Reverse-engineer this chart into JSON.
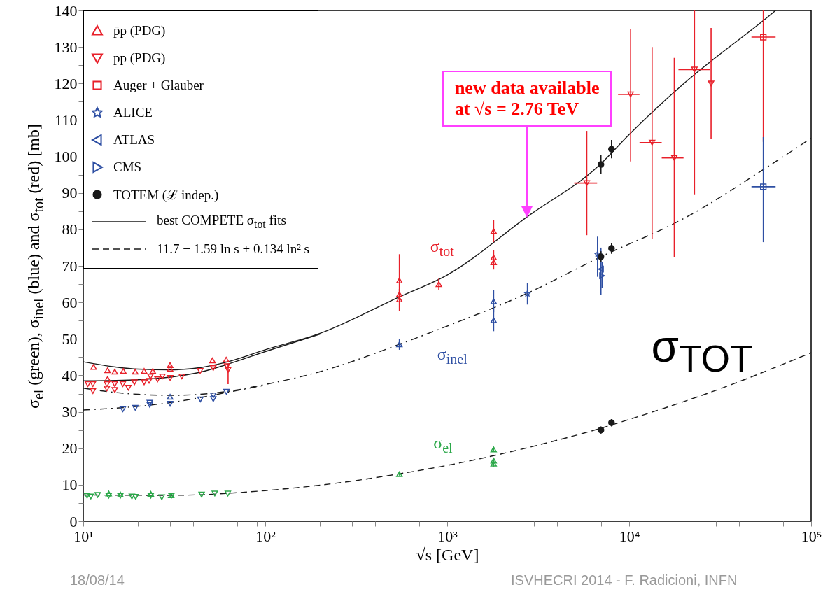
{
  "chart_data": {
    "type": "scatter",
    "xlabel": "√s   [GeV]",
    "ylabel": "σ$_{el}$ (green), σ$_{inel}$ (blue) and σ$_{tot}$ (red)   [mb]",
    "log": "x",
    "legend": "top left",
    "xlim": [
      10,
      100000
    ],
    "ylim": [
      0,
      140
    ],
    "xticks": [
      {
        "value": 10,
        "label": "10¹"
      },
      {
        "value": 20,
        "label": null
      },
      {
        "value": 30,
        "label": null
      },
      {
        "value": 40,
        "label": null
      },
      {
        "value": 50,
        "label": null
      },
      {
        "value": 60,
        "label": null
      },
      {
        "value": 70,
        "label": null
      },
      {
        "value": 80,
        "label": null
      },
      {
        "value": 90,
        "label": null
      },
      {
        "value": 100,
        "label": "10²"
      },
      {
        "value": 200,
        "label": null
      },
      {
        "value": 300,
        "label": null
      },
      {
        "value": 400,
        "label": null
      },
      {
        "value": 500,
        "label": null
      },
      {
        "value": 600,
        "label": null
      },
      {
        "value": 700,
        "label": null
      },
      {
        "value": 800,
        "label": null
      },
      {
        "value": 900,
        "label": null
      },
      {
        "value": 1000,
        "label": "10³"
      },
      {
        "value": 2000,
        "label": null
      },
      {
        "value": 3000,
        "label": null
      },
      {
        "value": 4000,
        "label": null
      },
      {
        "value": 5000,
        "label": null
      },
      {
        "value": 6000,
        "label": null
      },
      {
        "value": 7000,
        "label": null
      },
      {
        "value": 8000,
        "label": null
      },
      {
        "value": 9000,
        "label": null
      },
      {
        "value": 10000,
        "label": "10⁴"
      },
      {
        "value": 20000,
        "label": null
      },
      {
        "value": 30000,
        "label": null
      },
      {
        "value": 40000,
        "label": null
      },
      {
        "value": 50000,
        "label": null
      },
      {
        "value": 60000,
        "label": null
      },
      {
        "value": 70000,
        "label": null
      },
      {
        "value": 80000,
        "label": null
      },
      {
        "value": 90000,
        "label": null
      },
      {
        "value": 100000,
        "label": "10⁵"
      }
    ],
    "yticks": [
      0,
      {
        "value": 5,
        "label": null
      },
      10,
      {
        "value": 15,
        "label": null
      },
      20,
      {
        "value": 25,
        "label": null
      },
      30,
      {
        "value": 35,
        "label": null
      },
      40,
      {
        "value": 45,
        "label": null
      },
      50,
      {
        "value": 55,
        "label": null
      },
      60,
      {
        "value": 65,
        "label": null
      },
      70,
      {
        "value": 75,
        "label": null
      },
      80,
      {
        "value": 85,
        "label": null
      },
      90,
      {
        "value": 95,
        "label": null
      },
      100,
      {
        "value": 105,
        "label": null
      },
      110,
      {
        "value": 115,
        "label": null
      },
      120,
      {
        "value": 125,
        "label": null
      },
      130,
      {
        "value": 135,
        "label": null
      },
      140
    ],
    "series": [
      {
        "name": "p̄p (PDG)",
        "marker": "triangle",
        "color": "#e8202a",
        "x": [
          11.4,
          13.6,
          13.6,
          14.9,
          16.6,
          19.3,
          21.6,
          24.1,
          30,
          30,
          51.3,
          61,
          546,
          546,
          546,
          900,
          1800,
          1800,
          1800
        ],
        "values": [
          42.3,
          41.4,
          39,
          41,
          41.2,
          41,
          41.2,
          41.2,
          41.8,
          42.8,
          44.1,
          44.3,
          66,
          62.2,
          60.8,
          65,
          79.5,
          72.3,
          71
        ],
        "errors": [
          null,
          null,
          null,
          null,
          null,
          null,
          null,
          null,
          null,
          null,
          null,
          null,
          [
            61,
            73.2
          ],
          1.5,
          [
            57.6,
            62.5
          ],
          1.5,
          3,
          2,
          2
        ]
      },
      {
        "name": "pp (PDG)",
        "marker": "triangle-down",
        "color": "#e8202a",
        "x": [
          10.6,
          11.3,
          11.3,
          13.5,
          13.5,
          14.9,
          14.9,
          16.5,
          17.7,
          19.1,
          21.6,
          23,
          23.4,
          25.6,
          27.2,
          30,
          34.8,
          43.9,
          51.8,
          61.6,
          62.5,
          5850,
          10190,
          13370,
          17700,
          22850,
          28200
        ],
        "values": [
          37.6,
          37.6,
          35.7,
          37.6,
          36.4,
          36,
          37.6,
          37.6,
          36.6,
          38.1,
          38.1,
          38.5,
          39.7,
          38.9,
          39.7,
          39.3,
          39.7,
          41.2,
          42,
          42.5,
          41.5,
          92.7,
          117,
          103.8,
          99.6,
          123.8,
          120
        ],
        "errors": [
          null,
          null,
          null,
          null,
          null,
          null,
          null,
          null,
          null,
          null,
          null,
          null,
          null,
          null,
          null,
          null,
          null,
          null,
          null,
          null,
          [
            37.6,
            43
          ],
          [
            78.4,
            107
          ],
          [
            98.6,
            135
          ],
          [
            77.5,
            130
          ],
          [
            72.5,
            127
          ],
          [
            89.6,
            140
          ],
          [
            104.7,
            135.2
          ]
        ],
        "xerrors": [
          null,
          null,
          null,
          null,
          null,
          null,
          null,
          null,
          null,
          null,
          null,
          null,
          null,
          null,
          null,
          null,
          null,
          null,
          null,
          null,
          null,
          [
            4990,
            6670
          ],
          [
            8690,
            11400
          ],
          [
            11400,
            15100
          ],
          [
            15100,
            19900
          ],
          [
            18660,
            27700
          ],
          null
        ]
      },
      {
        "name": "Auger + Glauber",
        "marker": "square",
        "color": "#e8202a",
        "x": [
          54600
        ],
        "values": [
          132.7
        ],
        "errors": [
          [
            104,
            140
          ]
        ],
        "xerrors": [
          [
            47000,
            63800
          ]
        ]
      },
      {
        "name": "ALICE",
        "marker": "star",
        "color": "#2e4fa3",
        "x": [
          2760,
          6700
        ],
        "values": [
          62.4,
          73.2
        ],
        "errors": [
          3,
          [
            67,
            78
          ]
        ]
      },
      {
        "name": "ATLAS",
        "marker": "triangle-left",
        "color": "#2e4fa3",
        "x": [
          7000
        ],
        "values": [
          69.1
        ],
        "errors": [
          [
            62,
            75
          ]
        ]
      },
      {
        "name": "CMS",
        "marker": "triangle-right",
        "color": "#2e4fa3",
        "x": [
          7100
        ],
        "values": [
          67.3
        ],
        "errors": [
          [
            64,
            71
          ]
        ]
      },
      {
        "name": "TOTEM (ℒ indep.)",
        "marker": "circle",
        "color": "#1a1a1a",
        "x": [
          7000,
          8000,
          7000,
          8000,
          7000,
          8000
        ],
        "values": [
          97.8,
          102,
          72.5,
          74.8,
          25,
          27
        ],
        "errors": [
          2.5,
          2.5,
          1.5,
          1.5,
          1,
          1
        ]
      },
      {
        "marker": "square",
        "color": "#2e4fa3",
        "x": [
          54600
        ],
        "values": [
          91.7
        ],
        "errors": [
          [
            76.5,
            105.3
          ]
        ],
        "xerrors": [
          [
            47000,
            63800
          ]
        ]
      },
      {
        "marker": "triangle",
        "color": "#2e4fa3",
        "x": [
          30,
          546,
          1800,
          1800
        ],
        "values": [
          34.1,
          48.5,
          60.3,
          55.1
        ],
        "errors": [
          null,
          1.5,
          3,
          3
        ]
      },
      {
        "marker": "triangle-down",
        "color": "#2e4fa3",
        "x": [
          16.5,
          19.3,
          23.2,
          23.2,
          30,
          44,
          51.8,
          51.8,
          61.1
        ],
        "values": [
          30.7,
          31.1,
          31.9,
          32.5,
          32.2,
          33.4,
          34.5,
          33.5,
          35.5
        ]
      },
      {
        "marker": "triangle",
        "color": "#2ca84a",
        "x": [
          13.8,
          16,
          23.5,
          30.4,
          546,
          1800,
          1800,
          1800
        ],
        "values": [
          7.6,
          7.3,
          7.5,
          7.1,
          12.9,
          19.7,
          16.6,
          15.8
        ],
        "errors": [
          null,
          null,
          null,
          null,
          0.4,
          0.6,
          0.8,
          0.8
        ]
      },
      {
        "marker": "triangle-down",
        "color": "#2ca84a",
        "x": [
          10.5,
          11,
          12,
          13.8,
          16,
          18.5,
          19.4,
          23.5,
          27,
          30.5,
          44.7,
          52.8,
          62.3
        ],
        "values": [
          7,
          6.8,
          7.2,
          7,
          7,
          6.8,
          6.7,
          7,
          6.6,
          7,
          7.3,
          7.6,
          7.6
        ]
      },
      {
        "name": "best COMPETE σ$_{tot}$ fits",
        "type": "line",
        "line_style": "solid",
        "color": "#1a1a1a",
        "x": [
          10,
          15,
          20,
          30,
          45,
          60,
          100,
          200,
          546,
          1000,
          2760,
          7000,
          10000,
          20000,
          57000,
          63800
        ],
        "values": [
          43.7,
          42.3,
          41.7,
          41.5,
          42.2,
          43.5,
          47,
          51.5,
          61.5,
          67.5,
          83.5,
          98,
          106,
          120,
          138,
          140
        ]
      },
      {
        "type": "line",
        "line_style": "solid",
        "color": "#1a1a1a",
        "x": [
          10,
          15,
          20,
          30,
          45,
          60,
          100,
          200
        ],
        "values": [
          38.5,
          38.6,
          38.8,
          39.5,
          41,
          42.8,
          46.5,
          51.3
        ]
      },
      {
        "type": "line",
        "line_style": "dashdot",
        "color": "#1a1a1a",
        "x": [
          10,
          15,
          20,
          30,
          60,
          100,
          200,
          546,
          1000,
          2760,
          7000,
          20000,
          57000,
          100000
        ],
        "values": [
          36.5,
          35.3,
          34.8,
          34.5,
          35.5,
          37.5,
          41,
          48.5,
          53.5,
          62.5,
          72.5,
          83,
          97,
          105
        ]
      },
      {
        "type": "line",
        "line_style": "dashdot",
        "color": "#1a1a1a",
        "x": [
          10,
          15,
          20,
          30,
          60,
          100
        ],
        "values": [
          30.5,
          31,
          31.5,
          32.5,
          35.2,
          37.3
        ]
      },
      {
        "name": "11.7 − 1.59 ln s + 0.134 ln² s",
        "type": "line",
        "line_style": "dashed",
        "color": "#1a1a1a",
        "x": [
          10,
          30,
          100,
          300,
          546,
          1000,
          3000,
          7000,
          10000,
          30000,
          100000
        ],
        "values": [
          7.2,
          7.1,
          8.4,
          11,
          13,
          15.3,
          20.6,
          25.5,
          27.9,
          35.9,
          46.2
        ]
      }
    ],
    "annotations": [
      "new data available\nat √s = 2.76 TeV",
      "σ$_{tot}$",
      "σ$_{inel}$",
      "σ$_{el}$",
      "σ$_{TOT}$",
      "18/08/14",
      "ISVHECRI 2014 - F. Radicioni, INFN"
    ]
  }
}
